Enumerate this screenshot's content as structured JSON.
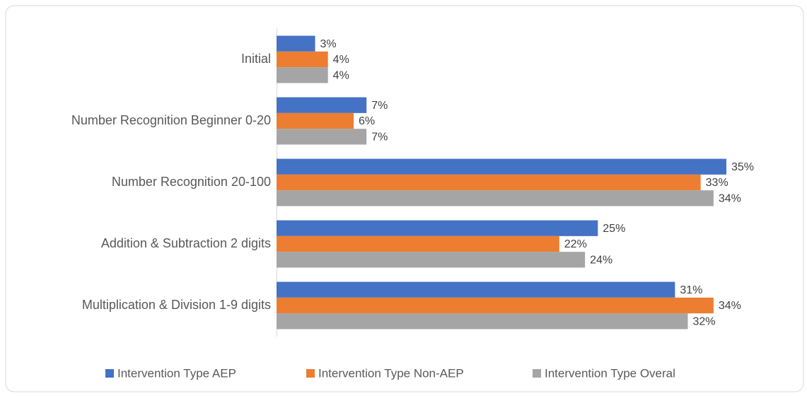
{
  "chart_data": {
    "type": "bar",
    "orientation": "horizontal",
    "categories": [
      "Initial",
      "Number Recognition Beginner 0-20",
      "Number Recognition 20-100",
      "Addition & Subtraction 2 digits",
      "Multiplication & Division 1-9 digits"
    ],
    "series": [
      {
        "name": "Intervention Type AEP",
        "color": "#4472c4",
        "values": [
          3,
          7,
          35,
          25,
          31
        ],
        "value_labels": [
          "3%",
          "7%",
          "35%",
          "25%",
          "31%"
        ]
      },
      {
        "name": "Intervention Type Non-AEP",
        "color": "#ed7d31",
        "values": [
          4,
          6,
          33,
          22,
          34
        ],
        "value_labels": [
          "4%",
          "6%",
          "33%",
          "22%",
          "34%"
        ]
      },
      {
        "name": "Intervention Type Overal",
        "color": "#a5a5a5",
        "values": [
          4,
          7,
          34,
          24,
          32
        ],
        "value_labels": [
          "4%",
          "7%",
          "34%",
          "24%",
          "32%"
        ]
      }
    ],
    "legend": "bottom"
  }
}
